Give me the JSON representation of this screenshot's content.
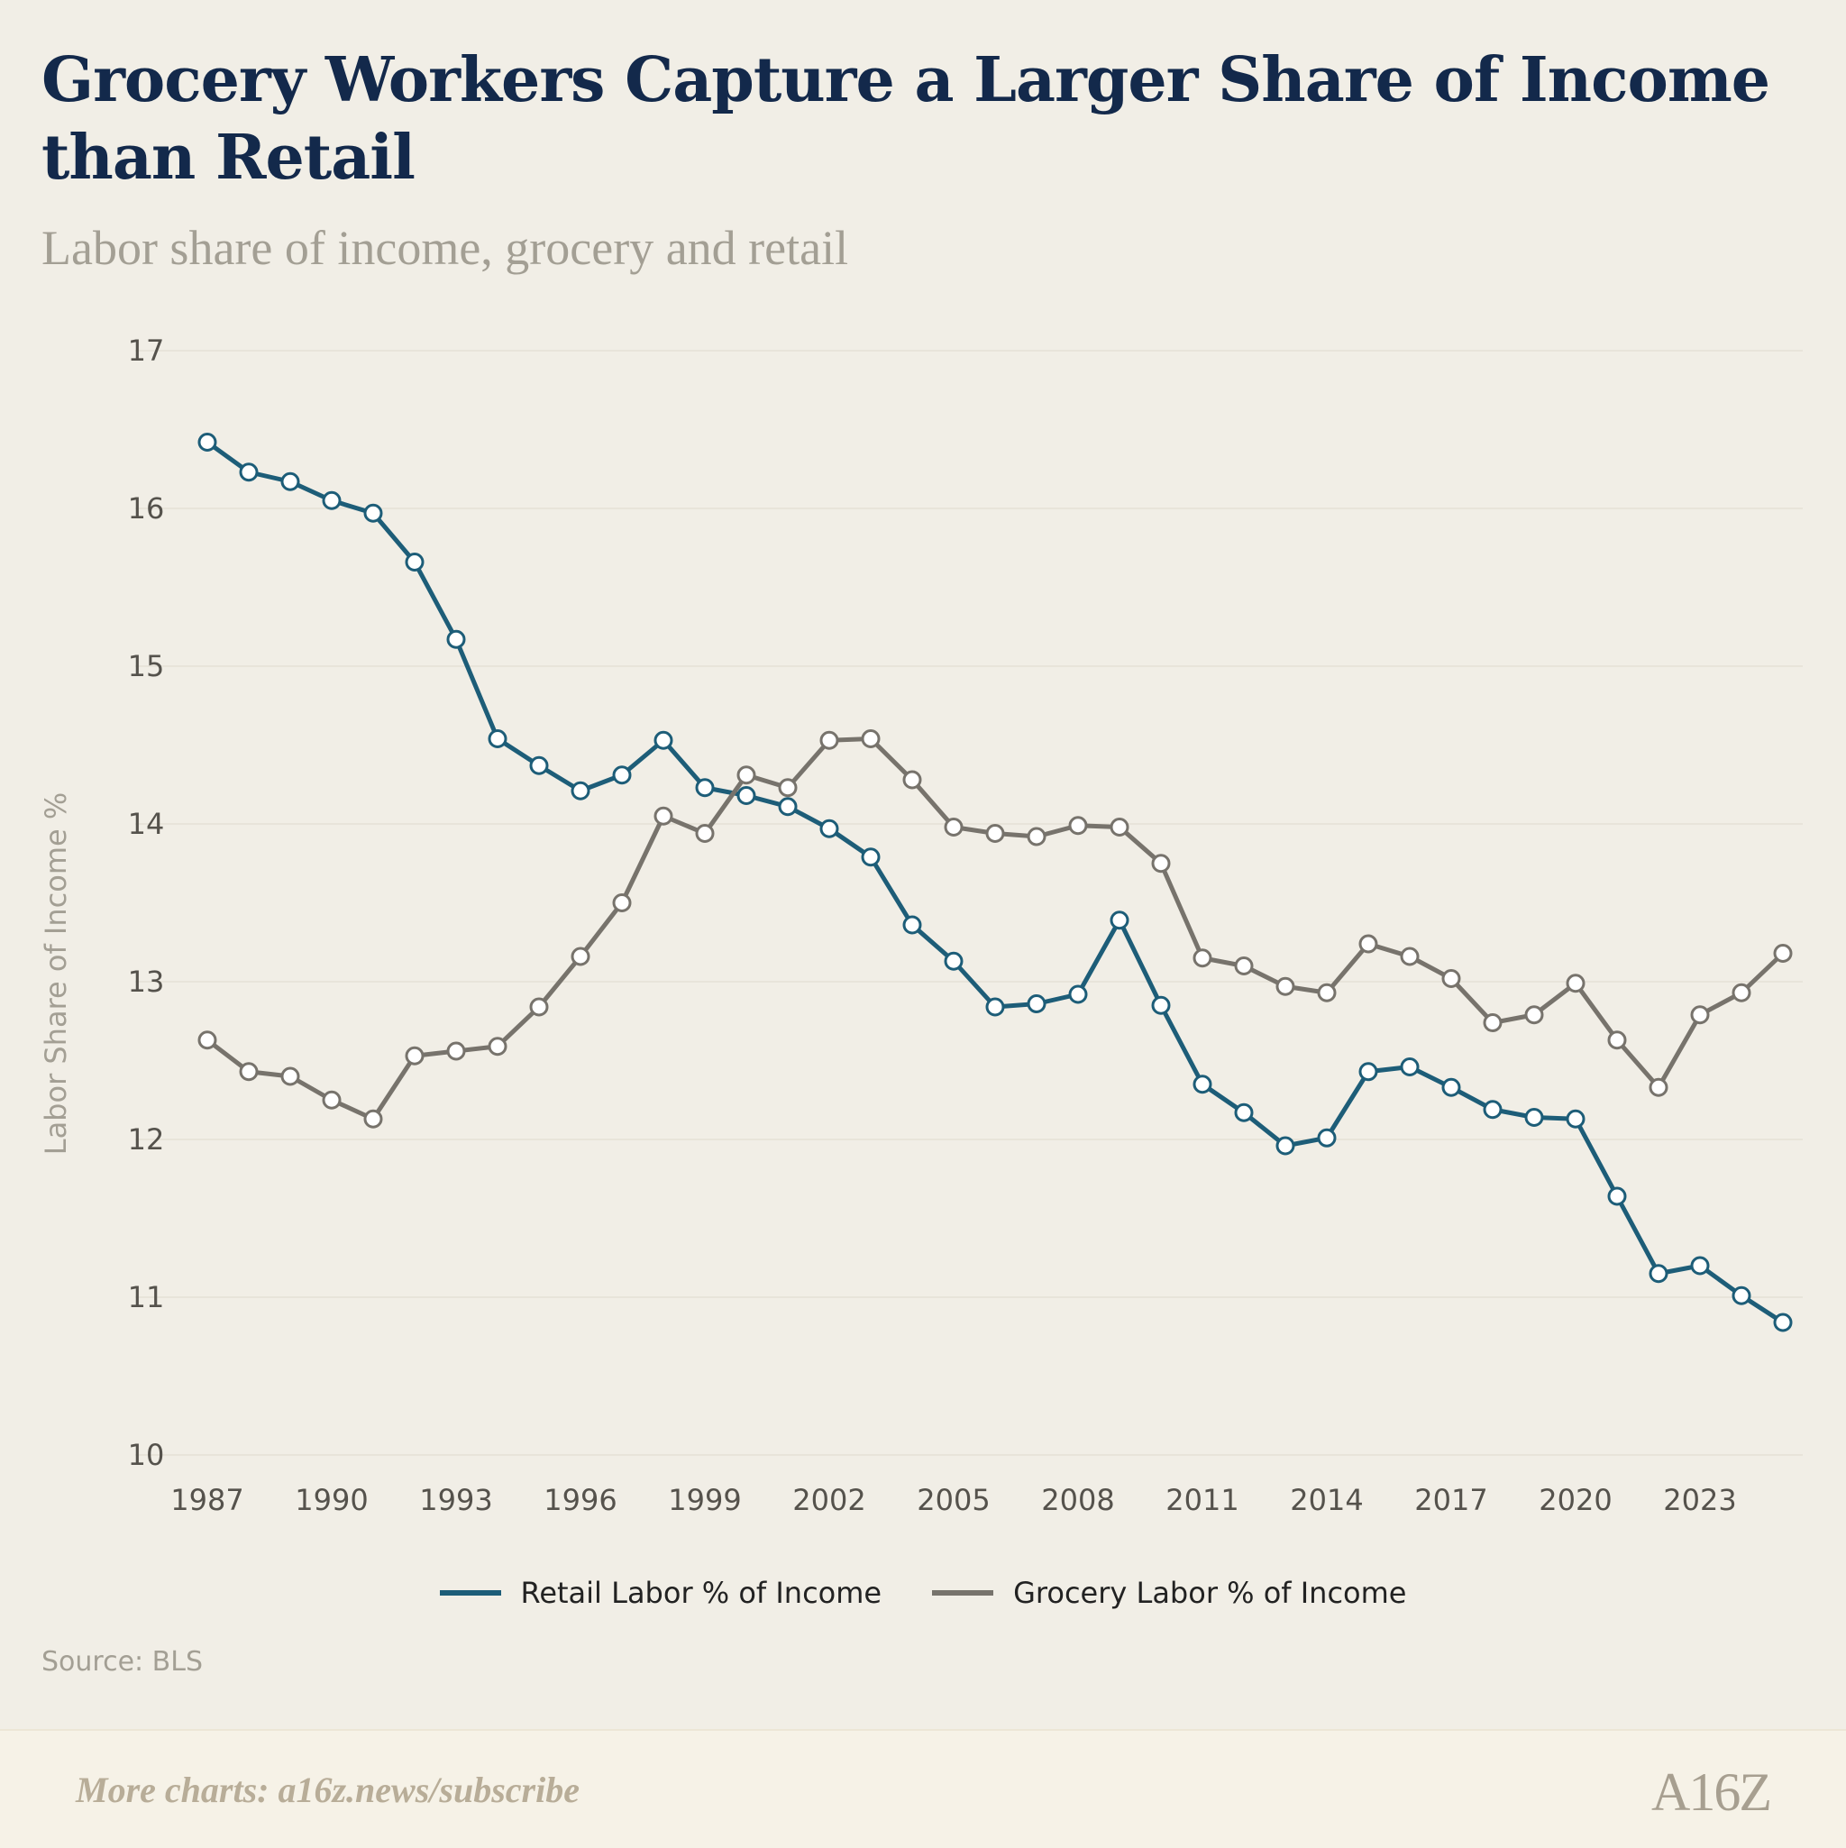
{
  "title": "Grocery Workers Capture a Larger Share of Income than Retail",
  "subtitle": "Labor share of income, grocery and retail",
  "source": "Source: BLS",
  "footer": {
    "text": "More charts: a16z.news/subscribe",
    "logo": "A16Z"
  },
  "legend": {
    "retail": "Retail Labor % of Income",
    "grocery": "Grocery Labor % of Income"
  },
  "colors": {
    "retail": "#1d5d78",
    "grocery": "#77736c",
    "marker_fill": "#ffffff"
  },
  "chart_data": {
    "type": "line",
    "ylabel": "Labor Share of Income %",
    "ylim": [
      10,
      17
    ],
    "yticks": [
      10,
      11,
      12,
      13,
      14,
      15,
      16,
      17
    ],
    "xticks": [
      1987,
      1990,
      1993,
      1996,
      1999,
      2002,
      2005,
      2008,
      2011,
      2014,
      2017,
      2020,
      2023
    ],
    "x": [
      1987,
      1988,
      1989,
      1990,
      1991,
      1992,
      1993,
      1994,
      1995,
      1996,
      1997,
      1998,
      1999,
      2000,
      2001,
      2002,
      2003,
      2004,
      2005,
      2006,
      2007,
      2008,
      2009,
      2010,
      2011,
      2012,
      2013,
      2014,
      2015,
      2016,
      2017,
      2018,
      2019,
      2020,
      2021,
      2022,
      2023,
      2024,
      2025
    ],
    "grid": true,
    "legend_position": "bottom",
    "series": [
      {
        "name": "Retail Labor % of Income",
        "values": [
          16.42,
          16.23,
          16.17,
          16.05,
          15.97,
          15.66,
          15.17,
          14.54,
          14.37,
          14.21,
          14.31,
          14.53,
          14.23,
          14.18,
          14.11,
          13.97,
          13.79,
          13.36,
          13.13,
          12.84,
          12.86,
          12.92,
          13.39,
          12.85,
          12.35,
          12.17,
          11.96,
          12.01,
          12.43,
          12.46,
          12.33,
          12.19,
          12.14,
          12.13,
          11.64,
          11.15,
          11.2,
          11.01,
          10.84
        ]
      },
      {
        "name": "Grocery Labor % of Income",
        "values": [
          12.63,
          12.43,
          12.4,
          12.25,
          12.13,
          12.53,
          12.56,
          12.59,
          12.84,
          13.16,
          13.5,
          14.05,
          13.94,
          14.31,
          14.23,
          14.53,
          14.54,
          14.28,
          13.98,
          13.94,
          13.92,
          13.99,
          13.98,
          13.75,
          13.15,
          13.1,
          12.97,
          12.93,
          13.24,
          13.16,
          13.02,
          12.74,
          12.79,
          12.99,
          12.63,
          12.33,
          12.79,
          12.93,
          13.18
        ]
      }
    ]
  }
}
